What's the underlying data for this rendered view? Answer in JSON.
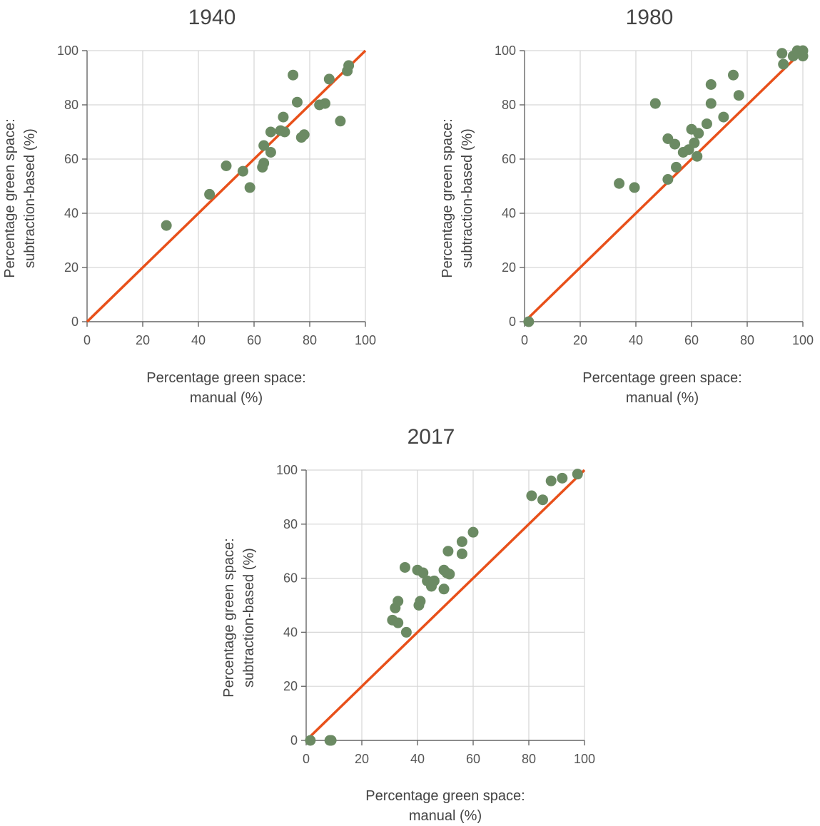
{
  "colors": {
    "points": "#6b8a63",
    "identity_line": "#e8501a",
    "grid": "#d6d6d6",
    "axis": "#666666"
  },
  "chart_data": [
    {
      "type": "scatter",
      "title": "1940",
      "xlabel": [
        "Percentage green space:",
        "manual (%)"
      ],
      "ylabel": [
        "Percentage green space:",
        "subtraction-based (%)"
      ],
      "xlim": [
        0,
        100
      ],
      "ylim": [
        0,
        100
      ],
      "xticks": [
        "0",
        "20",
        "40",
        "60",
        "80",
        "100"
      ],
      "yticks": [
        "0",
        "20",
        "40",
        "60",
        "80",
        "100"
      ],
      "grid": true,
      "reference_line": [
        [
          0,
          0
        ],
        [
          100,
          100
        ]
      ],
      "points": [
        [
          28.5,
          35.5
        ],
        [
          44,
          47
        ],
        [
          50,
          57.5
        ],
        [
          56,
          55.5
        ],
        [
          58.5,
          49.5
        ],
        [
          63,
          57
        ],
        [
          63.5,
          58.5
        ],
        [
          63.5,
          65
        ],
        [
          66,
          62.5
        ],
        [
          66,
          70
        ],
        [
          69.5,
          70.5
        ],
        [
          70.5,
          75.5
        ],
        [
          71,
          70
        ],
        [
          74,
          91
        ],
        [
          75.5,
          81
        ],
        [
          77,
          68
        ],
        [
          78,
          69
        ],
        [
          83.5,
          80
        ],
        [
          85.5,
          80.5
        ],
        [
          87,
          89.5
        ],
        [
          91,
          74
        ],
        [
          93.5,
          92.5
        ],
        [
          94,
          94.5
        ]
      ]
    },
    {
      "type": "scatter",
      "title": "1980",
      "xlabel": [
        "Percentage green space:",
        "manual (%)"
      ],
      "ylabel": [
        "Percentage green space:",
        "subtraction-based (%)"
      ],
      "xlim": [
        0,
        100
      ],
      "ylim": [
        0,
        100
      ],
      "xticks": [
        "0",
        "20",
        "40",
        "60",
        "80",
        "100"
      ],
      "yticks": [
        "0",
        "20",
        "40",
        "60",
        "80",
        "100"
      ],
      "grid": true,
      "reference_line": [
        [
          0,
          0
        ],
        [
          100,
          100
        ]
      ],
      "points": [
        [
          1.5,
          0
        ],
        [
          34,
          51
        ],
        [
          39.5,
          49.5
        ],
        [
          47,
          80.5
        ],
        [
          51.5,
          52.5
        ],
        [
          51.5,
          67.5
        ],
        [
          54,
          65.5
        ],
        [
          54.5,
          57
        ],
        [
          57,
          62.5
        ],
        [
          59,
          63.5
        ],
        [
          60,
          71
        ],
        [
          61,
          66
        ],
        [
          62,
          61
        ],
        [
          62.5,
          69.5
        ],
        [
          65.5,
          73
        ],
        [
          67,
          80.5
        ],
        [
          67,
          87.5
        ],
        [
          71.5,
          75.5
        ],
        [
          75,
          91
        ],
        [
          77,
          83.5
        ],
        [
          92.5,
          99
        ],
        [
          93,
          95
        ],
        [
          96.5,
          98
        ],
        [
          98,
          100
        ],
        [
          100,
          100
        ],
        [
          100,
          98
        ]
      ]
    },
    {
      "type": "scatter",
      "title": "2017",
      "xlabel": [
        "Percentage green space:",
        "manual (%)"
      ],
      "ylabel": [
        "Percentage green space:",
        "subtraction-based (%)"
      ],
      "xlim": [
        0,
        100
      ],
      "ylim": [
        0,
        100
      ],
      "xticks": [
        "0",
        "20",
        "40",
        "60",
        "80",
        "100"
      ],
      "yticks": [
        "0",
        "20",
        "40",
        "60",
        "80",
        "100"
      ],
      "grid": true,
      "reference_line": [
        [
          0,
          0
        ],
        [
          100,
          100
        ]
      ],
      "points": [
        [
          1.5,
          0
        ],
        [
          8.5,
          0
        ],
        [
          9,
          0
        ],
        [
          31,
          44.5
        ],
        [
          32,
          49
        ],
        [
          33,
          51.5
        ],
        [
          33,
          43.5
        ],
        [
          35.5,
          64
        ],
        [
          36,
          40
        ],
        [
          40,
          63
        ],
        [
          40.5,
          50
        ],
        [
          41,
          51.5
        ],
        [
          42,
          62
        ],
        [
          43.5,
          59
        ],
        [
          45,
          57
        ],
        [
          46,
          59
        ],
        [
          49.5,
          63
        ],
        [
          49.5,
          56
        ],
        [
          50.5,
          62
        ],
        [
          51,
          70
        ],
        [
          51.5,
          61.5
        ],
        [
          56,
          73.5
        ],
        [
          56,
          69
        ],
        [
          60,
          77
        ],
        [
          81,
          90.5
        ],
        [
          85,
          89
        ],
        [
          88,
          96
        ],
        [
          92,
          97
        ],
        [
          97.5,
          98.5
        ]
      ]
    }
  ]
}
